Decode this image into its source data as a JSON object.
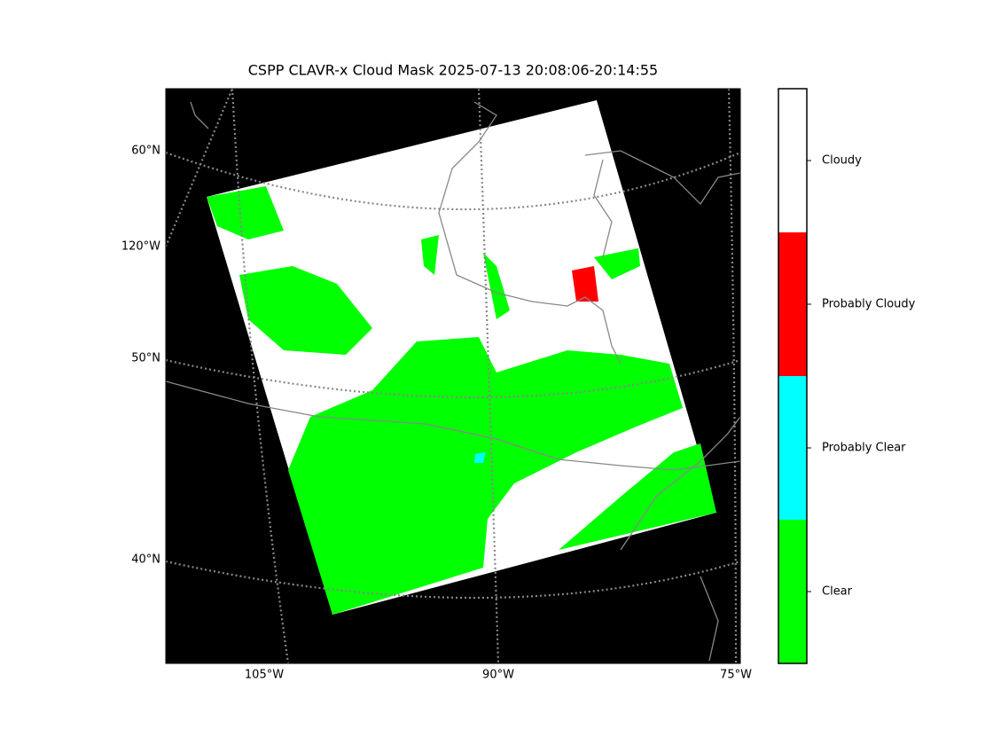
{
  "title": "CSPP CLAVR-x Cloud Mask 2025-07-13 20:08:06-20:14:55",
  "map": {
    "left_labels": [
      "60°N",
      "120°W",
      "50°N",
      "40°N"
    ],
    "bottom_labels": [
      "105°W",
      "90°W",
      "75°W"
    ]
  },
  "colorbar": {
    "classes": [
      {
        "label": "Clear",
        "color": "#00ff00"
      },
      {
        "label": "Probably Clear",
        "color": "#00ffff"
      },
      {
        "label": "Probably Cloudy",
        "color": "#ff0000"
      },
      {
        "label": "Cloudy",
        "color": "#ffffff"
      }
    ]
  }
}
